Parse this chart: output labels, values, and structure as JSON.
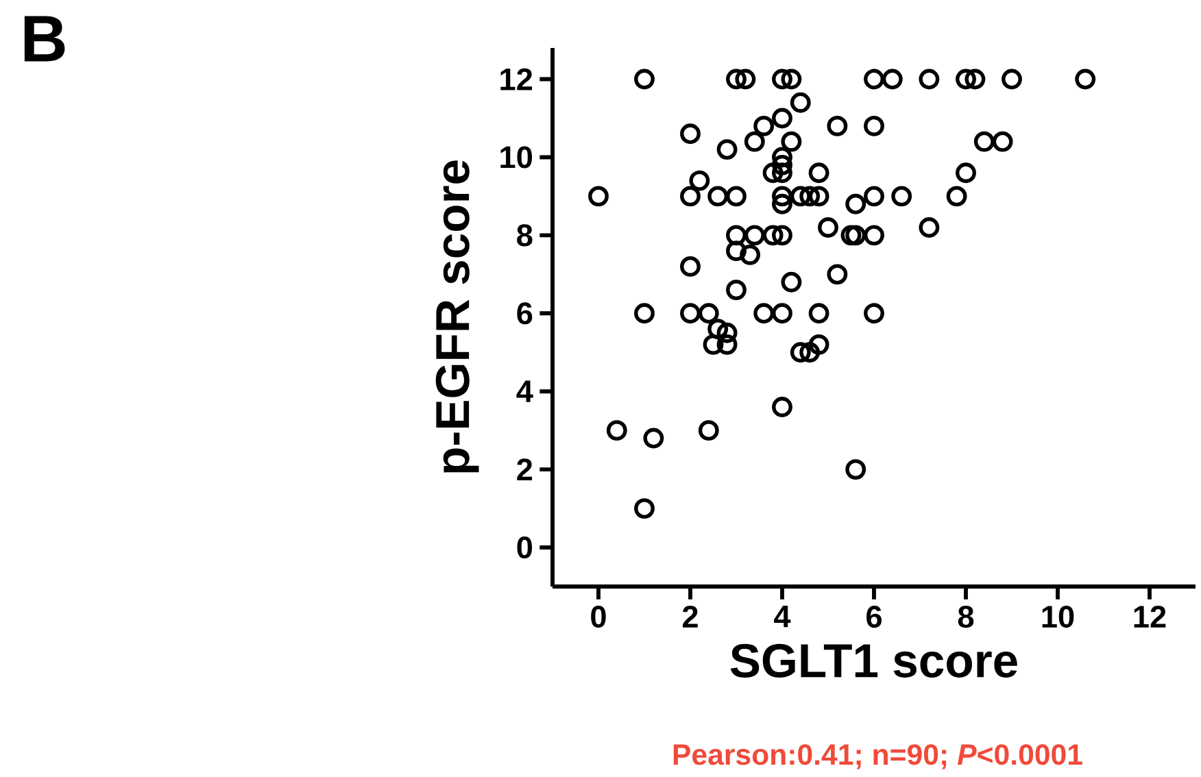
{
  "chart_data": {
    "type": "scatter",
    "xlabel": "SGLT1 score",
    "ylabel": "p-EGFR score",
    "annotations": [
      "B",
      "Pearson:0.41; n=90; *P*<0.0001"
    ],
    "xlim": [
      -1,
      13
    ],
    "ylim": [
      -1,
      12.8
    ],
    "xticks": [
      0,
      2,
      4,
      6,
      8,
      10,
      12
    ],
    "yticks": [
      0,
      2,
      4,
      6,
      8,
      10,
      12
    ],
    "marker": "circle",
    "series": [
      {
        "color": "#000000",
        "x": [
          1.0,
          3.0,
          3.2,
          4.0,
          4.2,
          6.0,
          6.4,
          7.2,
          8.0,
          8.2,
          9.0,
          10.6,
          4.4,
          4.0,
          3.6,
          3.4,
          4.2,
          2.0,
          2.8,
          5.2,
          6.0,
          8.4,
          8.8,
          4.0,
          4.0,
          4.0,
          3.8,
          4.8,
          8.0,
          2.2,
          0.0,
          2.0,
          2.6,
          3.0,
          4.0,
          4.0,
          4.4,
          4.6,
          4.8,
          5.6,
          6.0,
          6.6,
          7.8,
          7.2,
          5.0,
          3.0,
          3.4,
          3.8,
          4.0,
          5.5,
          5.6,
          6.0,
          3.0,
          3.3,
          2.0,
          4.2,
          5.2,
          3.0,
          1.0,
          2.0,
          2.4,
          3.6,
          4.0,
          4.8,
          6.0,
          2.6,
          2.8,
          2.5,
          2.8,
          4.8,
          4.4,
          4.6,
          4.0,
          0.4,
          1.2,
          2.4,
          5.6,
          1.0
        ],
        "values": [
          12,
          12,
          12,
          12,
          12,
          12,
          12,
          12,
          12,
          12,
          12,
          12,
          11.4,
          11.0,
          10.8,
          10.4,
          10.4,
          10.6,
          10.2,
          10.8,
          10.8,
          10.4,
          10.4,
          10.0,
          9.8,
          9.6,
          9.6,
          9.6,
          9.6,
          9.4,
          9.0,
          9.0,
          9.0,
          9.0,
          9.0,
          8.8,
          9.0,
          9.0,
          9.0,
          8.8,
          9.0,
          9.0,
          9.0,
          8.2,
          8.2,
          8.0,
          8.0,
          8.0,
          8.0,
          8.0,
          8.0,
          8.0,
          7.6,
          7.5,
          7.2,
          6.8,
          7.0,
          6.6,
          6.0,
          6.0,
          6.0,
          6.0,
          6.0,
          6.0,
          6.0,
          5.6,
          5.5,
          5.2,
          5.2,
          5.2,
          5.0,
          5.0,
          3.6,
          3.0,
          2.8,
          3.0,
          2.0,
          1.0
        ]
      }
    ]
  }
}
